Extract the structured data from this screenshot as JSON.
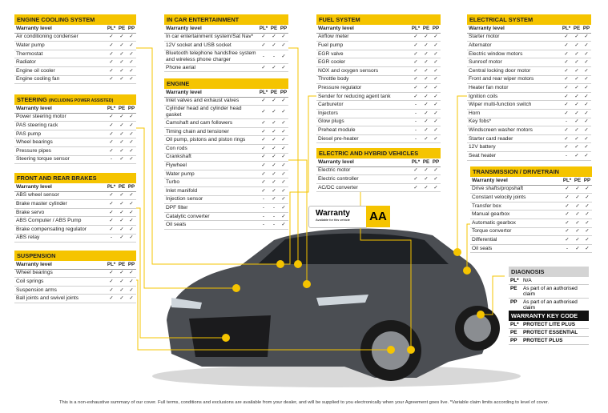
{
  "sections": [
    {
      "title": "ENGINE COOLING SYSTEM",
      "header": [
        "Warranty level",
        "PL*",
        "PE",
        "PP"
      ],
      "rows": [
        [
          "Air conditioning condenser",
          "✓",
          "✓",
          "✓"
        ],
        [
          "Water pump",
          "✓",
          "✓",
          "✓"
        ],
        [
          "Thermostat",
          "✓",
          "✓",
          "✓"
        ],
        [
          "Radiator",
          "✓",
          "✓",
          "✓"
        ],
        [
          "Engine oil cooler",
          "✓",
          "✓",
          "✓"
        ],
        [
          "Engine cooling fan",
          "✓",
          "✓",
          "✓"
        ]
      ]
    },
    {
      "title": "STEERING",
      "subtitle": "(INCLUDING POWER ASSISTED)",
      "header": [
        "Warranty level",
        "PL*",
        "PE",
        "PP"
      ],
      "rows": [
        [
          "Power steering motor",
          "✓",
          "✓",
          "✓"
        ],
        [
          "PAS steering rack",
          "✓",
          "✓",
          "✓"
        ],
        [
          "PAS pump",
          "✓",
          "✓",
          "✓"
        ],
        [
          "Wheel bearings",
          "✓",
          "✓",
          "✓"
        ],
        [
          "Pressure pipes",
          "✓",
          "✓",
          "✓"
        ],
        [
          "Steering torque sensor",
          "-",
          "✓",
          "✓"
        ]
      ]
    },
    {
      "title": "FRONT AND REAR BRAKES",
      "header": [
        "Warranty level",
        "PL*",
        "PE",
        "PP"
      ],
      "rows": [
        [
          "ABS wheel sensor",
          "✓",
          "✓",
          "✓"
        ],
        [
          "Brake master cylinder",
          "✓",
          "✓",
          "✓"
        ],
        [
          "Brake servo",
          "✓",
          "✓",
          "✓"
        ],
        [
          "ABS Computer / ABS Pump",
          "✓",
          "✓",
          "✓"
        ],
        [
          "Brake compensating regulator",
          "✓",
          "✓",
          "✓"
        ],
        [
          "ABS relay",
          "-",
          "✓",
          "✓"
        ]
      ]
    },
    {
      "title": "SUSPENSION",
      "header": [
        "Warranty level",
        "PL*",
        "PE",
        "PP"
      ],
      "rows": [
        [
          "Wheel bearings",
          "✓",
          "✓",
          "✓"
        ],
        [
          "Coil springs",
          "✓",
          "✓",
          "✓"
        ],
        [
          "Suspension arms",
          "✓",
          "✓",
          "✓"
        ],
        [
          "Ball joints and swivel joints",
          "✓",
          "✓",
          "✓"
        ]
      ]
    },
    {
      "title": "IN CAR ENTERTAINMENT",
      "header": [
        "Warranty level",
        "PL*",
        "PE",
        "PP"
      ],
      "rows": [
        [
          "In car entertainment system/Sat Nav*",
          "✓",
          "✓",
          "✓"
        ],
        [
          "12V socket and USB socket",
          "✓",
          "✓",
          "✓"
        ],
        [
          "Bluetooth telephone handsfree system and wireless phone charger",
          "-",
          "-",
          "✓"
        ],
        [
          "Phone aerial",
          "✓",
          "✓",
          "✓"
        ]
      ]
    },
    {
      "title": "ENGINE",
      "header": [
        "Warranty level",
        "PL*",
        "PE",
        "PP"
      ],
      "rows": [
        [
          "Inlet valves and exhaust valves",
          "✓",
          "✓",
          "✓"
        ],
        [
          "Cylinder head and cylinder head gasket",
          "✓",
          "✓",
          "✓"
        ],
        [
          "Camshaft and cam followers",
          "✓",
          "✓",
          "✓"
        ],
        [
          "Timing chain and tensioner",
          "✓",
          "✓",
          "✓"
        ],
        [
          "Oil pump, pistons and piston rings",
          "✓",
          "✓",
          "✓"
        ],
        [
          "Con rods",
          "✓",
          "✓",
          "✓"
        ],
        [
          "Crankshaft",
          "✓",
          "✓",
          "✓"
        ],
        [
          "Flywheel",
          "✓",
          "✓",
          "✓"
        ],
        [
          "Water pump",
          "✓",
          "✓",
          "✓"
        ],
        [
          "Turbo",
          "✓",
          "✓",
          "✓"
        ],
        [
          "Inlet manifold",
          "✓",
          "✓",
          "✓"
        ],
        [
          "Injection sensor",
          "-",
          "✓",
          "✓"
        ],
        [
          "DPF filter",
          "-",
          "-",
          "✓"
        ],
        [
          "Catalytic converter",
          "-",
          "-",
          "✓"
        ],
        [
          "Oil seals",
          "-",
          "-",
          "✓"
        ]
      ]
    },
    {
      "title": "FUEL SYSTEM",
      "header": [
        "Warranty level",
        "PL*",
        "PE",
        "PP"
      ],
      "rows": [
        [
          "Airflow meter",
          "✓",
          "✓",
          "✓"
        ],
        [
          "Fuel pump",
          "✓",
          "✓",
          "✓"
        ],
        [
          "EGR valve",
          "✓",
          "✓",
          "✓"
        ],
        [
          "EGR cooler",
          "✓",
          "✓",
          "✓"
        ],
        [
          "NOX and oxygen sensors",
          "✓",
          "✓",
          "✓"
        ],
        [
          "Throttle body",
          "✓",
          "✓",
          "✓"
        ],
        [
          "Pressure regulator",
          "✓",
          "✓",
          "✓"
        ],
        [
          "Sender for reducing agent tank",
          "✓",
          "✓",
          "✓"
        ],
        [
          "Carburetor",
          "-",
          "✓",
          "✓"
        ],
        [
          "Injectors",
          "-",
          "✓",
          "✓"
        ],
        [
          "Glow plugs",
          "-",
          "✓",
          "✓"
        ],
        [
          "Preheat module",
          "-",
          "✓",
          "✓"
        ],
        [
          "Diesel pre-heater",
          "-",
          "✓",
          "✓"
        ]
      ]
    },
    {
      "title": "ELECTRIC AND HYBRID VEHICLES",
      "header": [
        "Warranty level",
        "PL*",
        "PE",
        "PP"
      ],
      "rows": [
        [
          "Electric motor",
          "✓",
          "✓",
          "✓"
        ],
        [
          "Electric controller",
          "✓",
          "✓",
          "✓"
        ],
        [
          "AC/DC converter",
          "✓",
          "✓",
          "✓"
        ]
      ]
    },
    {
      "title": "ELECTRICAL SYSTEM",
      "header": [
        "Warranty level",
        "PL*",
        "PE",
        "PP"
      ],
      "rows": [
        [
          "Starter motor",
          "✓",
          "✓",
          "✓"
        ],
        [
          "Alternator",
          "✓",
          "✓",
          "✓"
        ],
        [
          "Electric window motors",
          "✓",
          "✓",
          "✓"
        ],
        [
          "Sunroof motor",
          "✓",
          "✓",
          "✓"
        ],
        [
          "Central locking door motor",
          "✓",
          "✓",
          "✓"
        ],
        [
          "Front and rear wiper motors",
          "✓",
          "✓",
          "✓"
        ],
        [
          "Heater fan motor",
          "✓",
          "✓",
          "✓"
        ],
        [
          "Ignition coils",
          "✓",
          "✓",
          "✓"
        ],
        [
          "Wiper multi-function switch",
          "✓",
          "✓",
          "✓"
        ],
        [
          "Horn",
          "✓",
          "✓",
          "✓"
        ],
        [
          "Key fobs*",
          "-",
          "✓",
          "✓"
        ],
        [
          "Windscreen washer motors",
          "✓",
          "✓",
          "✓"
        ],
        [
          "Starter card reader",
          "✓",
          "✓",
          "✓"
        ],
        [
          "12V battery",
          "✓",
          "✓",
          "✓"
        ],
        [
          "Seat heater",
          "-",
          "✓",
          "✓"
        ]
      ]
    },
    {
      "title": "TRANSMISSION / DRIVETRAIN",
      "header": [
        "Warranty level",
        "PL*",
        "PE",
        "PP"
      ],
      "rows": [
        [
          "Drive shafts/propshaft",
          "✓",
          "✓",
          "✓"
        ],
        [
          "Constant velocity joints",
          "✓",
          "✓",
          "✓"
        ],
        [
          "Transfer box",
          "✓",
          "✓",
          "✓"
        ],
        [
          "Manual gearbox",
          "✓",
          "✓",
          "✓"
        ],
        [
          "Automatic gearbox",
          "✓",
          "✓",
          "✓"
        ],
        [
          "Torque convertor",
          "✓",
          "✓",
          "✓"
        ],
        [
          "Differential",
          "✓",
          "✓",
          "✓"
        ],
        [
          "Oil seals",
          "-",
          "✓",
          "✓"
        ]
      ]
    }
  ],
  "diagnosis": {
    "title": "DIAGNOSIS",
    "rows": [
      [
        "PL*",
        "N/A"
      ],
      [
        "PE",
        "As part of an authorised claim"
      ],
      [
        "PP",
        "As part of an authorised claim"
      ]
    ]
  },
  "key_code": {
    "title": "WARRANTY KEY CODE",
    "rows": [
      [
        "PL*",
        "PROTECT LITE PLUS"
      ],
      [
        "PE",
        "PROTECT ESSENTIAL"
      ],
      [
        "PP",
        "PROTECT PLUS"
      ]
    ]
  },
  "sign": {
    "title": "Warranty",
    "text": "Available for this vehicle",
    "logo": "AA"
  },
  "footer": "This is a non-exhaustive summary of our cover. Full terms, conditions and exclusions are available from your dealer, and will be supplied to you electronically when your Agreement goes live. *Variable claim  limits according to level of cover."
}
